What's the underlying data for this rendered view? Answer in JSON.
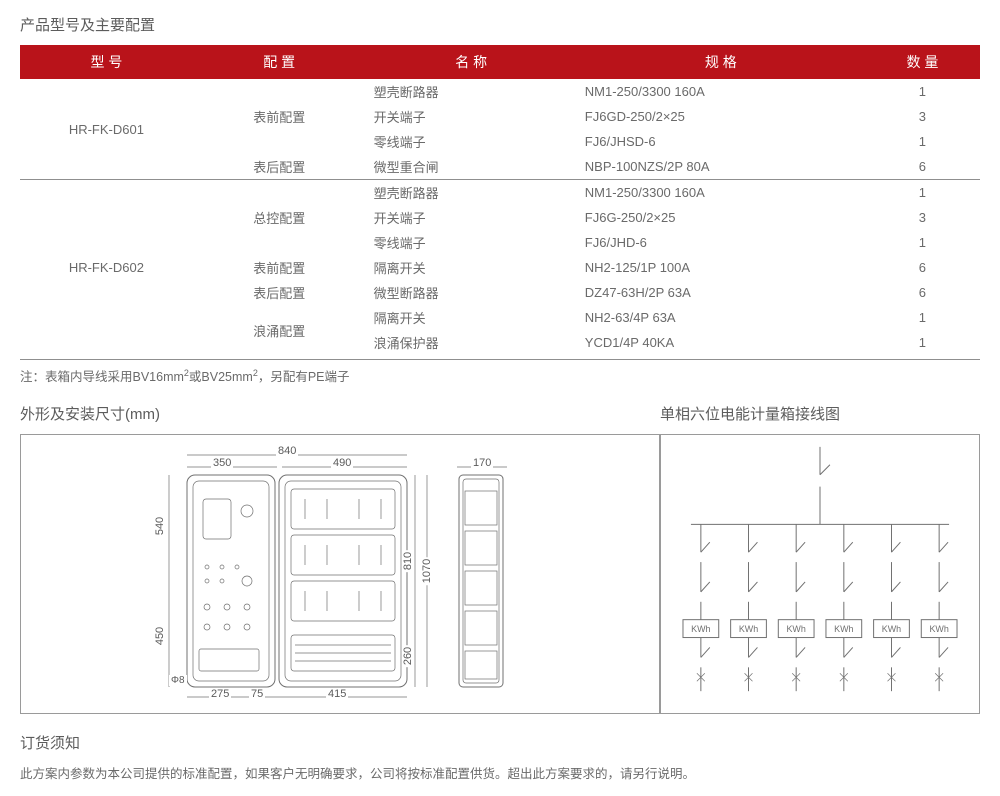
{
  "colors": {
    "header_bg": "#b9131a",
    "header_text": "#ffffff",
    "body_text": "#6a6a6a",
    "rule": "#8f8f8f",
    "stroke": "#707070"
  },
  "section1_title": "产品型号及主要配置",
  "table": {
    "headers": [
      "型 号",
      "配 置",
      "名 称",
      "规 格",
      "数 量"
    ],
    "col_widths_pct": [
      18,
      18,
      22,
      30,
      12
    ],
    "groups": [
      {
        "model": "HR-FK-D601",
        "configs": [
          {
            "cfg": "表前配置",
            "rows": [
              {
                "name": "塑壳断路器",
                "spec": "NM1-250/3300 160A",
                "qty": "1"
              },
              {
                "name": "开关端子",
                "spec": "FJ6GD-250/2×25",
                "qty": "3"
              },
              {
                "name": "零线端子",
                "spec": "FJ6/JHSD-6",
                "qty": "1"
              }
            ]
          },
          {
            "cfg": "表后配置",
            "rows": [
              {
                "name": "微型重合闸",
                "spec": "NBP-100NZS/2P 80A",
                "qty": "6"
              }
            ]
          }
        ]
      },
      {
        "model": "HR-FK-D602",
        "configs": [
          {
            "cfg": "总控配置",
            "rows": [
              {
                "name": "塑壳断路器",
                "spec": "NM1-250/3300 160A",
                "qty": "1"
              },
              {
                "name": "开关端子",
                "spec": "FJ6G-250/2×25",
                "qty": "3"
              },
              {
                "name": "零线端子",
                "spec": "FJ6/JHD-6",
                "qty": "1"
              }
            ]
          },
          {
            "cfg": "表前配置",
            "rows": [
              {
                "name": "隔离开关",
                "spec": "NH2-125/1P 100A",
                "qty": "6"
              }
            ]
          },
          {
            "cfg": "表后配置",
            "rows": [
              {
                "name": "微型断路器",
                "spec": "DZ47-63H/2P 63A",
                "qty": "6"
              }
            ]
          },
          {
            "cfg": "浪涌配置",
            "rows": [
              {
                "name": "隔离开关",
                "spec": "NH2-63/4P 63A",
                "qty": "1"
              },
              {
                "name": "浪涌保护器",
                "spec": "YCD1/4P 40KA",
                "qty": "1"
              }
            ]
          }
        ]
      }
    ]
  },
  "note_prefix": "注：表箱内导线采用BV16mm",
  "note_mid": "或BV25mm",
  "note_suffix": "，另配有PE端子",
  "note_sup": "2",
  "dim_section_title": "外形及安装尺寸(mm)",
  "wiring_section_title": "单相六位电能计量箱接线图",
  "dimensions": {
    "top_total": "840",
    "top_left": "350",
    "top_right": "490",
    "side_width": "170",
    "v_left_upper": "540",
    "v_left_lower": "450",
    "v_right_outer": "1070",
    "v_right_inner": "810",
    "v_bottom_right": "260",
    "b_left": "275",
    "b_mid": "75",
    "b_right": "415",
    "phi": "Φ8"
  },
  "wiring": {
    "branches": 6,
    "meter_label": "KWh"
  },
  "order_title": "订货须知",
  "order_text": "此方案内参数为本公司提供的标准配置，如果客户无明确要求，公司将按标准配置供货。超出此方案要求的，请另行说明。"
}
